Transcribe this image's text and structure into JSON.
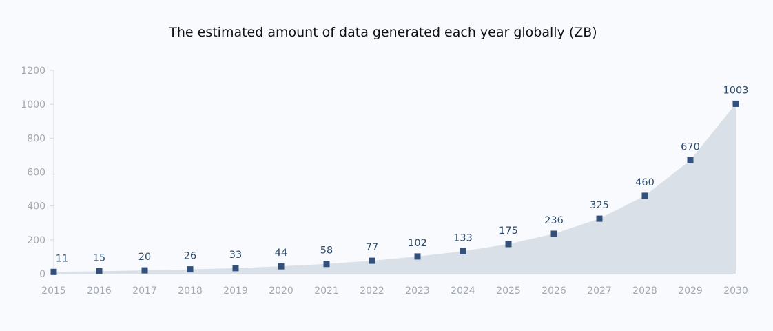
{
  "chart_data": {
    "type": "area",
    "title": "The estimated amount of data generated each year globally (ZB)",
    "xlabel": "",
    "ylabel": "",
    "categories": [
      "2015",
      "2016",
      "2017",
      "2018",
      "2019",
      "2020",
      "2021",
      "2022",
      "2023",
      "2024",
      "2025",
      "2026",
      "2027",
      "2028",
      "2029",
      "2030"
    ],
    "values": [
      11,
      15,
      20,
      26,
      33,
      44,
      58,
      77,
      102,
      133,
      175,
      236,
      325,
      460,
      670,
      1003
    ],
    "value_labels": [
      "11",
      "15",
      "20",
      "26",
      "33",
      "44",
      "58",
      "77",
      "102",
      "133",
      "175",
      "236",
      "325",
      "460",
      "670",
      "1003"
    ],
    "ylim": [
      0,
      1200
    ],
    "yticks": [
      "0",
      "200",
      "400",
      "600",
      "800",
      "1000",
      "1200"
    ],
    "grid": false,
    "legend": "none",
    "colors": {
      "area": "#dae0e7",
      "marker": "#33507a",
      "label": "#2c4a6b",
      "axis": "#d4d8de",
      "tick_text": "#a3a8b0",
      "title": "#111111"
    }
  }
}
